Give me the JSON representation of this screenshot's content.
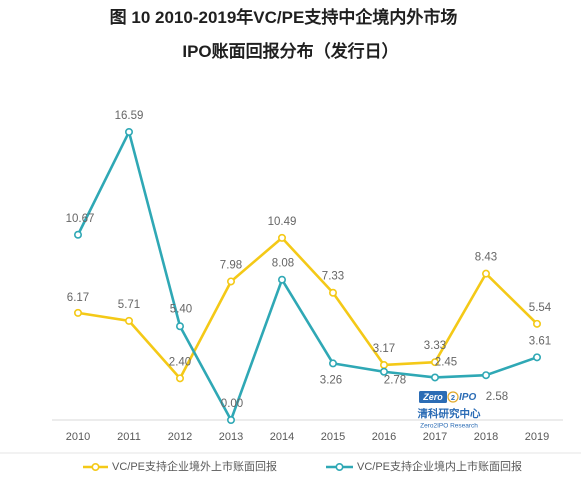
{
  "chart_data": {
    "type": "line",
    "title": [
      "图 10 2010-2019年VC/PE支持中企境内外市场",
      "IPO账面回报分布（发行日）"
    ],
    "categories": [
      "2010",
      "2011",
      "2012",
      "2013",
      "2014",
      "2015",
      "2016",
      "2017",
      "2018",
      "2019"
    ],
    "series": [
      {
        "name": "VC/PE支持企业境外上市账面回报",
        "color": "#F4C917",
        "values": [
          6.17,
          5.71,
          2.4,
          7.98,
          10.49,
          7.33,
          3.17,
          3.33,
          8.43,
          5.54
        ]
      },
      {
        "name": "VC/PE支持企业境内上市账面回报",
        "color": "#2FA8B5",
        "values": [
          10.67,
          16.59,
          5.4,
          0.0,
          8.08,
          3.26,
          2.78,
          2.45,
          2.58,
          3.61
        ]
      }
    ],
    "ylim": [
      0,
      18
    ],
    "grid": false,
    "legend": "bottom"
  },
  "logo": {
    "mark_box": "Zero",
    "mark_digit": "2",
    "mark_tail": "IPO",
    "name_cn": "清科研究中心",
    "name_en": "Zero2IPO Research",
    "color": "#2B6CB5",
    "accent": "#E0A92A"
  }
}
